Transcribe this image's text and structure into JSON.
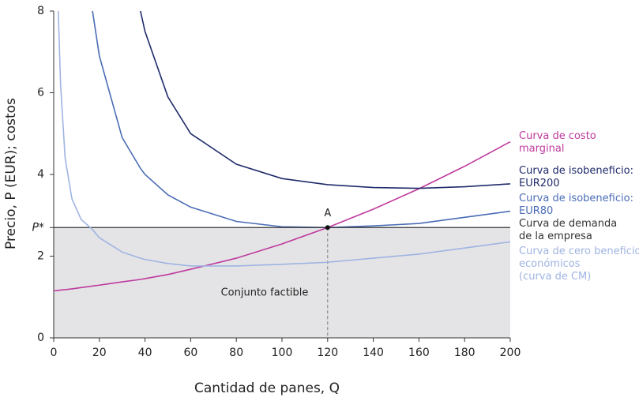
{
  "chart_data": {
    "type": "line",
    "y_label": "Precio, P (EUR); costos",
    "x_label": "Cantidad de panes, Q",
    "x": [
      0,
      2,
      3,
      5,
      8,
      12,
      16,
      17,
      20,
      30,
      38,
      40,
      50,
      60,
      80,
      100,
      120,
      140,
      160,
      180,
      200
    ],
    "series": [
      {
        "name": "Curva de costo\nmarginal",
        "color": "#bf3a9e",
        "values": [
          1.15,
          1.16,
          1.17,
          1.18,
          1.2,
          1.23,
          1.26,
          1.27,
          1.29,
          1.37,
          1.43,
          1.45,
          1.55,
          1.68,
          1.95,
          2.3,
          2.7,
          3.15,
          3.65,
          4.2,
          4.8
        ]
      },
      {
        "name": "Curva de isobeneficio:\nEUR200",
        "color": "#1f2a6b",
        "values": [
          null,
          null,
          null,
          null,
          null,
          null,
          null,
          null,
          null,
          null,
          8,
          7.5,
          5.9,
          5.0,
          4.25,
          3.9,
          3.75,
          3.68,
          3.66,
          3.7,
          3.77
        ]
      },
      {
        "name": "Curva de isobeneficio:\nEUR80",
        "color": "#4a6cb6",
        "values": [
          null,
          null,
          null,
          null,
          null,
          null,
          null,
          8,
          6.9,
          4.9,
          4.15,
          4.0,
          3.5,
          3.2,
          2.85,
          2.72,
          2.7,
          2.74,
          2.8,
          2.95,
          3.1
        ]
      },
      {
        "name": "Curva de demanda\nde la empresa",
        "color": "#333333",
        "values": [
          2.7,
          2.7,
          2.7,
          2.7,
          2.7,
          2.7,
          2.7,
          2.7,
          2.7,
          2.7,
          2.7,
          2.7,
          2.7,
          2.7,
          2.7,
          2.7,
          2.7,
          2.7,
          2.7,
          2.7,
          2.7
        ]
      },
      {
        "name": "Curva de cero beneficios\neconómicos\n(curva de CM)",
        "color": "#9fb4e2",
        "values": [
          null,
          8,
          6.2,
          4.4,
          3.4,
          2.9,
          2.7,
          2.65,
          2.45,
          2.1,
          1.95,
          1.92,
          1.82,
          1.76,
          1.76,
          1.8,
          1.85,
          1.95,
          2.05,
          2.2,
          2.35
        ]
      }
    ],
    "feasible_label": "Conjunto factible",
    "point_a": {
      "label": "A",
      "x": 120,
      "y": 2.7
    },
    "xlim": [
      0,
      200
    ],
    "ylim": [
      0,
      8
    ],
    "xticks": [
      0,
      20,
      40,
      60,
      80,
      100,
      120,
      140,
      160,
      180,
      200
    ],
    "yticks": [
      0,
      2,
      4,
      6,
      8,
      {
        "value": 2.7,
        "label": "P*"
      }
    ],
    "shade_color": "#e4e4e6"
  }
}
